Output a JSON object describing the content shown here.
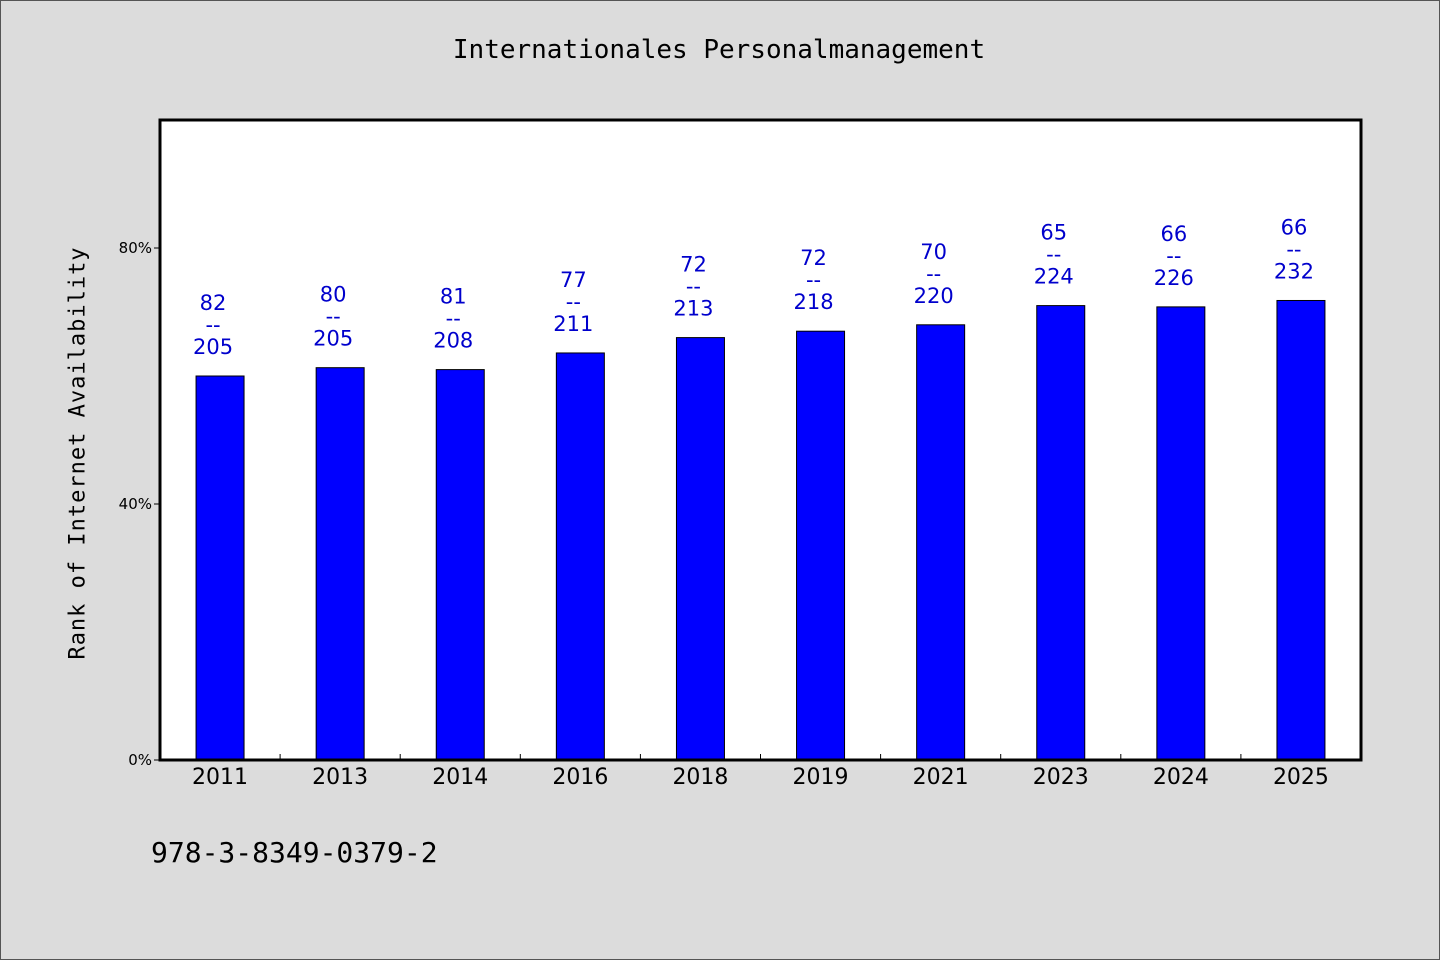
{
  "chart_data": {
    "type": "bar",
    "title": "Internationales Personalmanagement",
    "xlabel": "",
    "ylabel": "Rank of Internet Availability",
    "ylim": [
      0,
      100
    ],
    "y_ticks": [
      {
        "value": 0,
        "label": "0%"
      },
      {
        "value": 40,
        "label": "40%"
      },
      {
        "value": 80,
        "label": "80%"
      }
    ],
    "categories": [
      "2011",
      "2013",
      "2014",
      "2016",
      "2018",
      "2019",
      "2021",
      "2023",
      "2024",
      "2025"
    ],
    "values": [
      60,
      61.3,
      61,
      63.6,
      66,
      67,
      68,
      71,
      70.8,
      71.8
    ],
    "data_labels": [
      {
        "top": "82",
        "sep": "--",
        "bottom": "205"
      },
      {
        "top": "80",
        "sep": "--",
        "bottom": "205"
      },
      {
        "top": "81",
        "sep": "--",
        "bottom": "208"
      },
      {
        "top": "77",
        "sep": "--",
        "bottom": "211"
      },
      {
        "top": "72",
        "sep": "--",
        "bottom": "213"
      },
      {
        "top": "72",
        "sep": "--",
        "bottom": "218"
      },
      {
        "top": "70",
        "sep": "--",
        "bottom": "220"
      },
      {
        "top": "65",
        "sep": "--",
        "bottom": "224"
      },
      {
        "top": "66",
        "sep": "--",
        "bottom": "226"
      },
      {
        "top": "66",
        "sep": "--",
        "bottom": "232"
      }
    ],
    "grid": false,
    "legend": "none",
    "bar_color": "#0000ff",
    "label_color": "#0000cc"
  },
  "footer": {
    "isbn": "978-3-8349-0379-2"
  }
}
